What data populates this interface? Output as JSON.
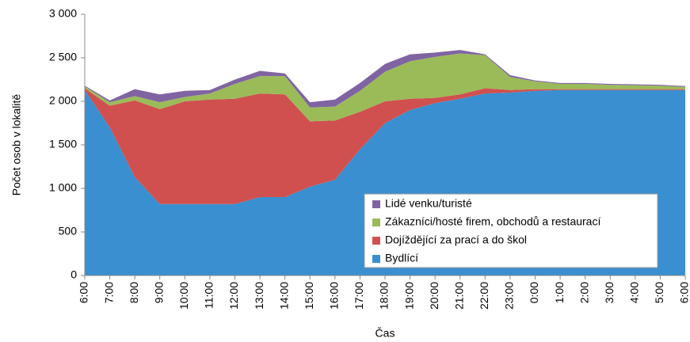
{
  "chart_data": {
    "type": "stacked_area",
    "y_label": "Počet osob v lokalitě",
    "x_label": "Čas",
    "categories": [
      "6:00",
      "7:00",
      "8:00",
      "9:00",
      "10:00",
      "11:00",
      "12:00",
      "13:00",
      "14:00",
      "15:00",
      "16:00",
      "17:00",
      "18:00",
      "19:00",
      "20:00",
      "21:00",
      "22:00",
      "23:00",
      "0:00",
      "1:00",
      "2:00",
      "3:00",
      "4:00",
      "5:00",
      "6:00"
    ],
    "series": [
      {
        "name": "Bydlící",
        "color": "#3a8fd0",
        "values": [
          2130,
          1700,
          1130,
          820,
          820,
          820,
          820,
          900,
          900,
          1020,
          1100,
          1450,
          1750,
          1900,
          1980,
          2030,
          2090,
          2100,
          2120,
          2130,
          2130,
          2130,
          2130,
          2130,
          2130
        ]
      },
      {
        "name": "Dojíždějící za prací a do škol",
        "color": "#d0504f",
        "values": [
          20,
          250,
          880,
          1090,
          1180,
          1200,
          1210,
          1190,
          1180,
          750,
          680,
          430,
          250,
          130,
          60,
          50,
          60,
          30,
          20,
          10,
          10,
          10,
          10,
          10,
          10
        ]
      },
      {
        "name": "Zákazníci/hosté firem, obchodů a restaurací",
        "color": "#9bbb59",
        "values": [
          20,
          40,
          50,
          80,
          50,
          70,
          170,
          200,
          210,
          160,
          160,
          240,
          340,
          430,
          470,
          470,
          380,
          150,
          90,
          60,
          60,
          50,
          45,
          40,
          25
        ]
      },
      {
        "name": "Lidé venku/turisté",
        "color": "#8064a2",
        "values": [
          10,
          20,
          80,
          90,
          70,
          40,
          50,
          60,
          30,
          60,
          80,
          90,
          90,
          80,
          50,
          40,
          10,
          20,
          10,
          10,
          10,
          10,
          10,
          10,
          10
        ]
      }
    ],
    "ylim": [
      0,
      3000
    ],
    "yticks": [
      0,
      500,
      {
        "value": 1000,
        "label": "1 000"
      },
      {
        "value": 1500,
        "label": "1 500"
      },
      {
        "value": 2000,
        "label": "2 000"
      },
      {
        "value": 2500,
        "label": "2 500"
      },
      {
        "value": 3000,
        "label": "3 000"
      }
    ]
  }
}
